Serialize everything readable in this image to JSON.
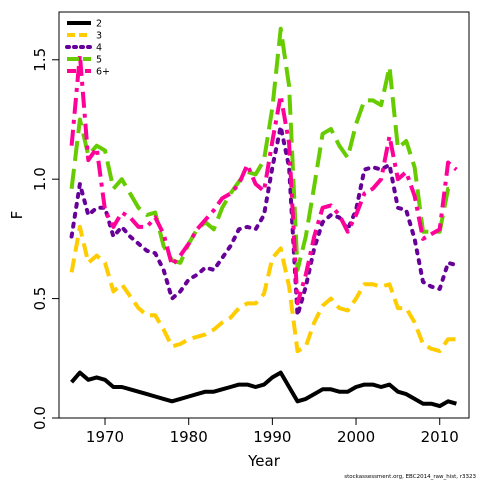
{
  "chart_data": {
    "type": "line",
    "xlabel": "Year",
    "ylabel": "F",
    "xlim": [
      1964.5,
      2013.5
    ],
    "ylim": [
      0,
      1.7
    ],
    "xticks": [
      1970,
      1980,
      1990,
      2000,
      2010
    ],
    "yticks": [
      0.0,
      0.5,
      1.0,
      1.5
    ],
    "ytick_labels": [
      "0.0",
      "0.5",
      "1.0",
      "1.5"
    ],
    "grid": false,
    "legend_position": "top-left",
    "footnote": "stockassessment.org, EBC2014_raw_hist, r3323",
    "x": [
      1966,
      1967,
      1968,
      1969,
      1970,
      1971,
      1972,
      1973,
      1974,
      1975,
      1976,
      1977,
      1978,
      1979,
      1980,
      1981,
      1982,
      1983,
      1984,
      1985,
      1986,
      1987,
      1988,
      1989,
      1990,
      1991,
      1992,
      1993,
      1994,
      1995,
      1996,
      1997,
      1998,
      1999,
      2000,
      2001,
      2002,
      2003,
      2004,
      2005,
      2006,
      2007,
      2008,
      2009,
      2010,
      2011,
      2012
    ],
    "series": [
      {
        "name": "2",
        "color": "#000000",
        "dash": "solid",
        "values": [
          0.15,
          0.19,
          0.16,
          0.17,
          0.16,
          0.13,
          0.13,
          0.12,
          0.11,
          0.1,
          0.09,
          0.08,
          0.07,
          0.08,
          0.09,
          0.1,
          0.11,
          0.11,
          0.12,
          0.13,
          0.14,
          0.14,
          0.13,
          0.14,
          0.17,
          0.19,
          0.13,
          0.07,
          0.08,
          0.1,
          0.12,
          0.12,
          0.11,
          0.11,
          0.13,
          0.14,
          0.14,
          0.13,
          0.14,
          0.11,
          0.1,
          0.08,
          0.06,
          0.06,
          0.05,
          0.07,
          0.06
        ]
      },
      {
        "name": "3",
        "color": "#ffcc00",
        "dash": "dashed",
        "values": [
          0.61,
          0.8,
          0.65,
          0.68,
          0.65,
          0.53,
          0.56,
          0.51,
          0.46,
          0.43,
          0.43,
          0.37,
          0.3,
          0.31,
          0.33,
          0.34,
          0.35,
          0.37,
          0.4,
          0.42,
          0.46,
          0.48,
          0.48,
          0.52,
          0.67,
          0.71,
          0.55,
          0.28,
          0.3,
          0.4,
          0.47,
          0.5,
          0.46,
          0.45,
          0.5,
          0.56,
          0.56,
          0.55,
          0.56,
          0.46,
          0.46,
          0.4,
          0.31,
          0.29,
          0.28,
          0.33,
          0.33
        ]
      },
      {
        "name": "4",
        "color": "#660099",
        "dash": "dotted",
        "values": [
          0.76,
          0.98,
          0.85,
          0.88,
          0.88,
          0.76,
          0.8,
          0.76,
          0.73,
          0.7,
          0.69,
          0.62,
          0.5,
          0.53,
          0.58,
          0.6,
          0.63,
          0.62,
          0.67,
          0.72,
          0.79,
          0.8,
          0.79,
          0.85,
          1.05,
          1.22,
          1.05,
          0.43,
          0.55,
          0.71,
          0.82,
          0.85,
          0.84,
          0.79,
          0.87,
          1.04,
          1.05,
          1.04,
          1.06,
          0.88,
          0.87,
          0.75,
          0.57,
          0.55,
          0.54,
          0.65,
          0.64
        ]
      },
      {
        "name": "5",
        "color": "#66cc00",
        "dash": "longdash",
        "values": [
          0.96,
          1.25,
          1.1,
          1.14,
          1.12,
          0.96,
          1.0,
          0.94,
          0.88,
          0.85,
          0.86,
          0.72,
          0.66,
          0.65,
          0.73,
          0.79,
          0.82,
          0.79,
          0.88,
          0.94,
          0.99,
          1.03,
          1.02,
          1.08,
          1.3,
          1.63,
          1.39,
          0.62,
          0.76,
          0.97,
          1.19,
          1.21,
          1.14,
          1.09,
          1.23,
          1.33,
          1.33,
          1.31,
          1.47,
          1.13,
          1.16,
          1.05,
          0.78,
          0.78,
          0.78,
          0.96,
          0.96
        ]
      },
      {
        "name": "6+",
        "color": "#ff0099",
        "dash": "dashdot",
        "values": [
          1.14,
          1.52,
          1.08,
          1.13,
          0.87,
          0.8,
          0.86,
          0.84,
          0.8,
          0.8,
          0.84,
          0.77,
          0.64,
          0.68,
          0.73,
          0.79,
          0.83,
          0.87,
          0.92,
          0.94,
          0.98,
          1.06,
          0.98,
          0.95,
          1.16,
          1.35,
          1.15,
          0.48,
          0.6,
          0.76,
          0.88,
          0.89,
          0.85,
          0.78,
          0.85,
          0.94,
          0.96,
          1.0,
          1.18,
          1.0,
          1.03,
          0.93,
          0.75,
          0.77,
          0.79,
          1.07,
          1.04
        ]
      }
    ]
  }
}
